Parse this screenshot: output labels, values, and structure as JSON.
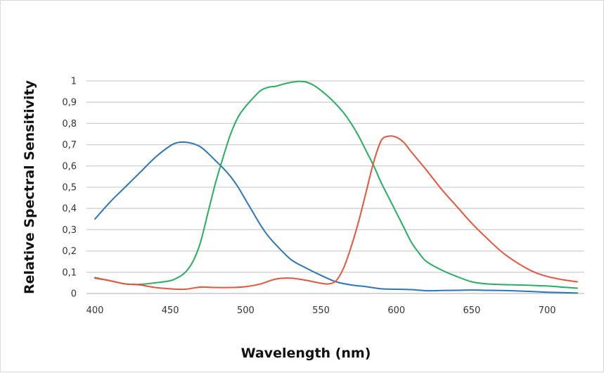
{
  "chart_data": {
    "type": "line",
    "title": "",
    "xlabel": "Wavelength (nm)",
    "ylabel": "Relative Spectral Sensitivity",
    "xlim": [
      400,
      720
    ],
    "ylim": [
      0,
      1
    ],
    "x_ticks": [
      "400",
      "450",
      "500",
      "550",
      "600",
      "650",
      "700"
    ],
    "y_ticks": [
      "0",
      "0,1",
      "0,2",
      "0,3",
      "0,4",
      "0,5",
      "0,6",
      "0,7",
      "0,8",
      "0,9",
      "1"
    ],
    "grid": "horizontal",
    "legend": "none",
    "series": [
      {
        "color": "#2e75b6",
        "points": [
          [
            400,
            0.35
          ],
          [
            410,
            0.43
          ],
          [
            420,
            0.5
          ],
          [
            430,
            0.57
          ],
          [
            440,
            0.64
          ],
          [
            450,
            0.695
          ],
          [
            455,
            0.71
          ],
          [
            460,
            0.712
          ],
          [
            465,
            0.705
          ],
          [
            470,
            0.69
          ],
          [
            475,
            0.66
          ],
          [
            480,
            0.625
          ],
          [
            485,
            0.59
          ],
          [
            490,
            0.55
          ],
          [
            495,
            0.5
          ],
          [
            500,
            0.44
          ],
          [
            505,
            0.38
          ],
          [
            510,
            0.32
          ],
          [
            515,
            0.27
          ],
          [
            520,
            0.23
          ],
          [
            530,
            0.16
          ],
          [
            540,
            0.12
          ],
          [
            550,
            0.085
          ],
          [
            560,
            0.055
          ],
          [
            570,
            0.04
          ],
          [
            580,
            0.032
          ],
          [
            590,
            0.022
          ],
          [
            600,
            0.02
          ],
          [
            610,
            0.018
          ],
          [
            620,
            0.013
          ],
          [
            630,
            0.014
          ],
          [
            640,
            0.015
          ],
          [
            650,
            0.016
          ],
          [
            660,
            0.015
          ],
          [
            670,
            0.014
          ],
          [
            680,
            0.012
          ],
          [
            690,
            0.009
          ],
          [
            700,
            0.006
          ],
          [
            710,
            0.004
          ],
          [
            720,
            0.002
          ]
        ]
      },
      {
        "color": "#27ae60",
        "points": [
          [
            400,
            0.075
          ],
          [
            410,
            0.06
          ],
          [
            420,
            0.045
          ],
          [
            430,
            0.043
          ],
          [
            440,
            0.05
          ],
          [
            450,
            0.06
          ],
          [
            455,
            0.075
          ],
          [
            460,
            0.1
          ],
          [
            465,
            0.15
          ],
          [
            470,
            0.24
          ],
          [
            475,
            0.38
          ],
          [
            480,
            0.52
          ],
          [
            485,
            0.64
          ],
          [
            490,
            0.75
          ],
          [
            495,
            0.83
          ],
          [
            500,
            0.88
          ],
          [
            505,
            0.92
          ],
          [
            510,
            0.955
          ],
          [
            515,
            0.97
          ],
          [
            520,
            0.975
          ],
          [
            525,
            0.985
          ],
          [
            530,
            0.993
          ],
          [
            535,
            0.998
          ],
          [
            540,
            0.995
          ],
          [
            545,
            0.98
          ],
          [
            550,
            0.955
          ],
          [
            555,
            0.925
          ],
          [
            560,
            0.89
          ],
          [
            565,
            0.85
          ],
          [
            570,
            0.8
          ],
          [
            575,
            0.74
          ],
          [
            580,
            0.67
          ],
          [
            585,
            0.6
          ],
          [
            590,
            0.52
          ],
          [
            595,
            0.45
          ],
          [
            600,
            0.38
          ],
          [
            605,
            0.31
          ],
          [
            610,
            0.24
          ],
          [
            615,
            0.19
          ],
          [
            620,
            0.15
          ],
          [
            630,
            0.11
          ],
          [
            640,
            0.08
          ],
          [
            650,
            0.055
          ],
          [
            660,
            0.045
          ],
          [
            670,
            0.042
          ],
          [
            680,
            0.04
          ],
          [
            690,
            0.038
          ],
          [
            700,
            0.035
          ],
          [
            710,
            0.03
          ],
          [
            720,
            0.025
          ]
        ]
      },
      {
        "color": "#e8543c",
        "points": [
          [
            400,
            0.072
          ],
          [
            410,
            0.06
          ],
          [
            420,
            0.045
          ],
          [
            430,
            0.04
          ],
          [
            440,
            0.028
          ],
          [
            450,
            0.022
          ],
          [
            460,
            0.02
          ],
          [
            470,
            0.03
          ],
          [
            480,
            0.028
          ],
          [
            490,
            0.028
          ],
          [
            500,
            0.032
          ],
          [
            510,
            0.045
          ],
          [
            520,
            0.068
          ],
          [
            530,
            0.072
          ],
          [
            540,
            0.062
          ],
          [
            550,
            0.048
          ],
          [
            555,
            0.045
          ],
          [
            560,
            0.06
          ],
          [
            565,
            0.12
          ],
          [
            570,
            0.22
          ],
          [
            575,
            0.34
          ],
          [
            580,
            0.48
          ],
          [
            585,
            0.62
          ],
          [
            590,
            0.72
          ],
          [
            595,
            0.74
          ],
          [
            600,
            0.735
          ],
          [
            605,
            0.71
          ],
          [
            610,
            0.665
          ],
          [
            620,
            0.58
          ],
          [
            630,
            0.49
          ],
          [
            640,
            0.41
          ],
          [
            650,
            0.33
          ],
          [
            660,
            0.26
          ],
          [
            670,
            0.195
          ],
          [
            680,
            0.145
          ],
          [
            690,
            0.105
          ],
          [
            700,
            0.08
          ],
          [
            710,
            0.065
          ],
          [
            720,
            0.055
          ]
        ]
      }
    ]
  }
}
